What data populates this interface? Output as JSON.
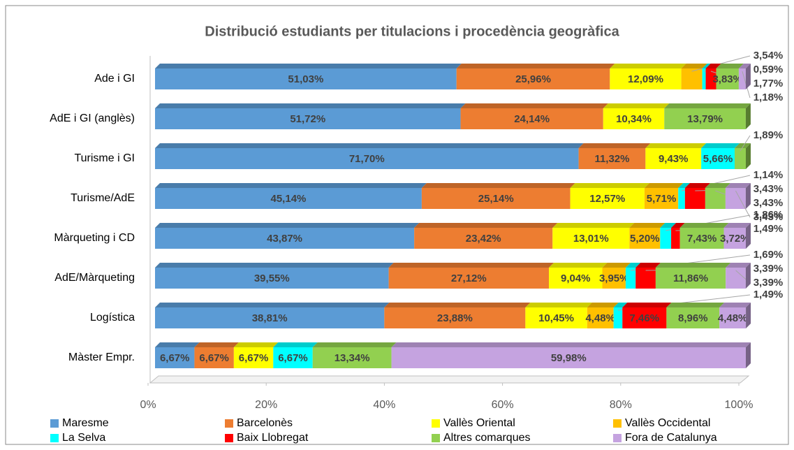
{
  "chart_data": {
    "type": "bar",
    "orientation": "horizontal",
    "stacked": true,
    "title": "Distribució estudiants per titulacions i procedència geogràfica",
    "categories": [
      "Ade i GI",
      "AdE i GI (anglès)",
      "Turisme i GI",
      "Turisme/AdE",
      "Màrqueting i CD",
      "AdE/Màrqueting",
      "Logística",
      "Màster Empr."
    ],
    "series": [
      {
        "name": "Maresme",
        "color": "#5b9bd5",
        "values": [
          51.03,
          51.72,
          71.7,
          45.14,
          43.87,
          39.55,
          38.81,
          6.67
        ],
        "value_labels": [
          "51,03%",
          "51,72%",
          "71,70%",
          "45,14%",
          "43,87%",
          "39,55%",
          "38,81%",
          "6,67%"
        ]
      },
      {
        "name": "Barcelonès",
        "color": "#ed7d31",
        "values": [
          25.96,
          24.14,
          11.32,
          25.14,
          23.42,
          27.12,
          23.88,
          6.67
        ],
        "value_labels": [
          "25,96%",
          "24,14%",
          "11,32%",
          "25,14%",
          "23,42%",
          "27,12%",
          "23,88%",
          "6,67%"
        ]
      },
      {
        "name": "Vallès Oriental",
        "color": "#ffff00",
        "values": [
          12.09,
          10.34,
          9.43,
          12.57,
          13.01,
          9.04,
          10.45,
          6.67
        ],
        "value_labels": [
          "12,09%",
          "10,34%",
          "9,43%",
          "12,57%",
          "13,01%",
          "9,04%",
          "10,45%",
          "6,67%"
        ]
      },
      {
        "name": "Vallès Occidental",
        "color": "#ffc000",
        "values": [
          3.54,
          0,
          0,
          5.71,
          5.2,
          3.95,
          4.48,
          0
        ],
        "value_labels": [
          "3,54%",
          null,
          null,
          "5,71%",
          "5,20%",
          "3,95%",
          "4,48%",
          null
        ]
      },
      {
        "name": "La Selva",
        "color": "#00ffff",
        "values": [
          0.59,
          0,
          5.66,
          1.14,
          1.86,
          1.69,
          1.49,
          6.67
        ],
        "value_labels": [
          "0,59%",
          null,
          "5,66%",
          "1,14%",
          "1,86%",
          "1,69%",
          "1,49%",
          "6,67%"
        ]
      },
      {
        "name": "Baix Llobregat",
        "color": "#ff0000",
        "values": [
          1.77,
          0,
          0,
          3.43,
          1.49,
          3.39,
          7.46,
          0
        ],
        "value_labels": [
          "1,77%",
          null,
          null,
          "3,43%",
          "1,49%",
          "3,39%",
          "7,46%",
          null
        ]
      },
      {
        "name": "Altres comarques",
        "color": "#92d050",
        "values": [
          3.83,
          13.79,
          1.89,
          3.43,
          7.43,
          11.86,
          8.96,
          13.34
        ],
        "value_labels": [
          "3,83%",
          "13,79%",
          "1,89%",
          "3,43%",
          "7,43%",
          "11,86%",
          "8,96%",
          "13,34%"
        ]
      },
      {
        "name": "Fora de Catalunya",
        "color": "#c5a3e0",
        "values": [
          1.18,
          0,
          0,
          3.43,
          3.72,
          3.39,
          4.48,
          59.98
        ],
        "value_labels": [
          "1,18%",
          null,
          null,
          "3,43%",
          "3,72%",
          "3,39%",
          "4,48%",
          "59,98%"
        ]
      }
    ],
    "xlim": [
      0,
      100
    ],
    "xticks": [
      {
        "value": 0,
        "label": "0%"
      },
      {
        "value": 20,
        "label": "20%"
      },
      {
        "value": 40,
        "label": "40%"
      },
      {
        "value": 60,
        "label": "60%"
      },
      {
        "value": 80,
        "label": "80%"
      },
      {
        "value": 100,
        "label": "100%"
      }
    ],
    "legend": "bottom"
  }
}
